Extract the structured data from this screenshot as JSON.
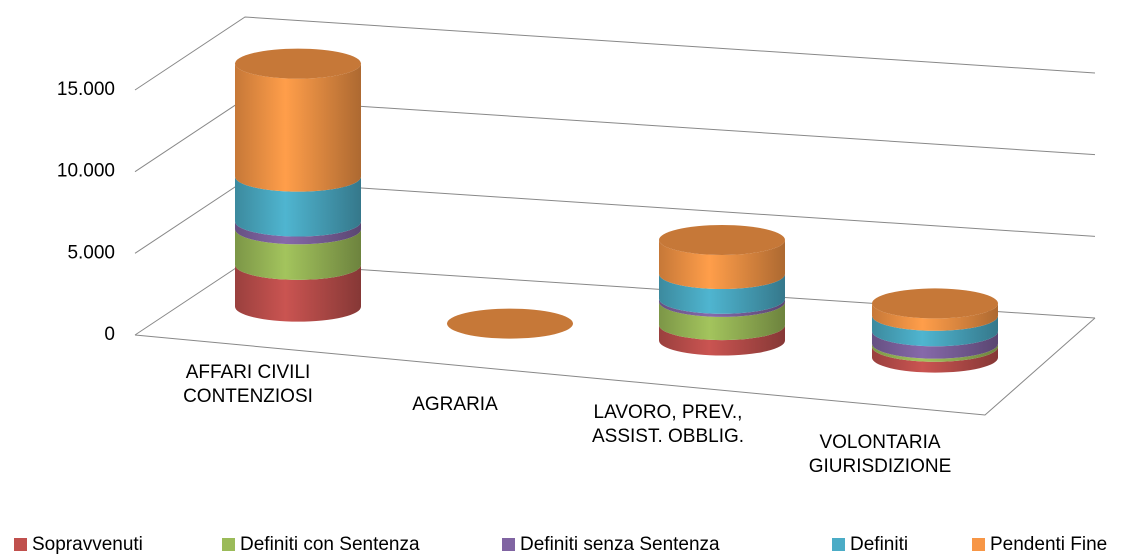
{
  "chart_data": {
    "type": "cylinder3d",
    "categories": [
      "AFFARI CIVILI\nCONTENZIOSI",
      "AGRARIA",
      "LAVORO, PREV.,\nASSIST. OBBLIG.",
      "VOLONTARIA\nGIURISDIZIONE"
    ],
    "series": [
      {
        "name": "Sopravvenuti",
        "color": "#c0504d",
        "values": [
          2700,
          0,
          1000,
          700
        ]
      },
      {
        "name": "Definiti con Sentenza",
        "color": "#9bbb59",
        "values": [
          2300,
          0,
          1500,
          200
        ]
      },
      {
        "name": "Definiti senza Sentenza",
        "color": "#8064a2",
        "values": [
          500,
          0,
          200,
          800
        ]
      },
      {
        "name": "Definiti",
        "color": "#4bacc6",
        "values": [
          2900,
          0,
          1600,
          1000
        ]
      },
      {
        "name": "Pendenti Fine",
        "color": "#f79646",
        "values": [
          7300,
          0,
          2200,
          800
        ]
      }
    ],
    "ylim": [
      0,
      15000
    ],
    "yticks": [
      0,
      {
        "value": 5000,
        "label": "5.000"
      },
      {
        "value": 10000,
        "label": "10.000"
      },
      {
        "value": 15000,
        "label": "15.000"
      }
    ],
    "grid": true,
    "legend": "bottom"
  }
}
